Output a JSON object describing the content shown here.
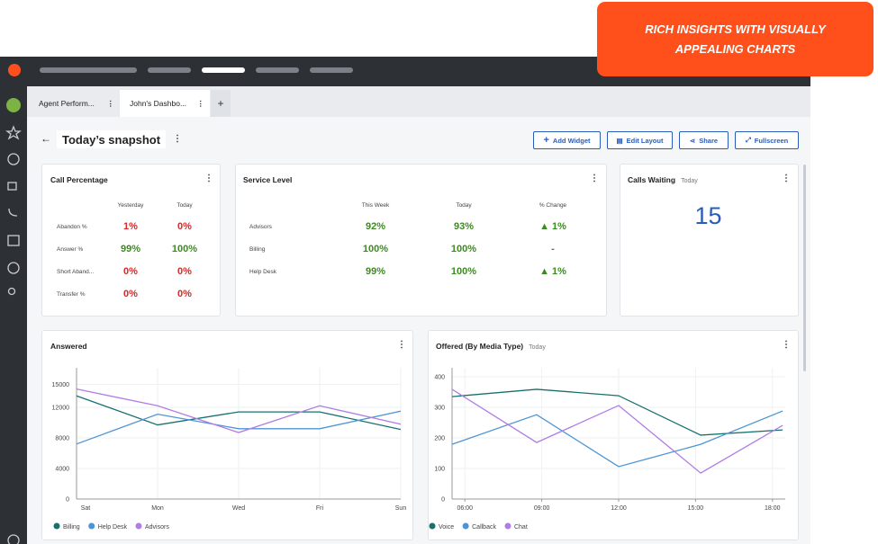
{
  "banner": "RICH INSIGHTS WITH VISUALLY APPEALING CHARTS",
  "tabs": [
    "Agent Perform...",
    "John's Dashbo..."
  ],
  "page_title": "Today’s snapshot",
  "actions": [
    "Add Widget",
    "Edit Layout",
    "Share",
    "Fullscreen"
  ],
  "call_percentage": {
    "title": "Call Percentage",
    "columns": [
      "Yesterday",
      "Today"
    ],
    "rows": [
      {
        "label": "Abandon %",
        "values": [
          "1%",
          "0%"
        ],
        "color": "#d42a2a"
      },
      {
        "label": "Answer %",
        "values": [
          "99%",
          "100%"
        ],
        "color": "#3e8a22"
      },
      {
        "label": "Short Aband...",
        "values": [
          "0%",
          "0%"
        ],
        "color": "#d42a2a"
      },
      {
        "label": "Transfer %",
        "values": [
          "0%",
          "0%"
        ],
        "color": "#d42a2a"
      }
    ]
  },
  "service_level": {
    "title": "Service Level",
    "columns": [
      "This Week",
      "Today",
      "% Change"
    ],
    "color": "#3e8a22",
    "rows": [
      {
        "label": "Advisors",
        "values": [
          "92%",
          "93%",
          "▲ 1%"
        ]
      },
      {
        "label": "Billing",
        "values": [
          "100%",
          "100%",
          "-"
        ]
      },
      {
        "label": "Help Desk",
        "values": [
          "99%",
          "100%",
          "▲ 1%"
        ]
      }
    ]
  },
  "calls_waiting": {
    "title": "Calls Waiting",
    "subtitle": "Today",
    "value": 15
  },
  "chart_data": [
    {
      "type": "line",
      "title": "Answered",
      "categories": [
        "Sat",
        "Mon",
        "Wed",
        "Fri",
        "Sun"
      ],
      "ylim": [
        0,
        16000
      ],
      "yticks": [
        0,
        4000,
        8000,
        12000,
        15000
      ],
      "grid": true,
      "series": [
        {
          "name": "Billing",
          "color": "#17706e",
          "values": [
            13500,
            9700,
            11400,
            11400,
            9100
          ]
        },
        {
          "name": "Help Desk",
          "color": "#4d94d4",
          "values": [
            7200,
            11100,
            9200,
            9200,
            11500
          ]
        },
        {
          "name": "Advisors",
          "color": "#b07ce6",
          "values": [
            14400,
            12200,
            8700,
            12200,
            9800
          ]
        }
      ]
    },
    {
      "type": "line",
      "title": "Offered (By Media Type)",
      "subtitle": "Today",
      "x": [
        5.5,
        8.8,
        12,
        15.2,
        18.4
      ],
      "xlim": [
        5.5,
        18.5
      ],
      "xticks": [
        {
          "value": 6,
          "label": "06:00"
        },
        {
          "value": 9,
          "label": "09:00"
        },
        {
          "value": 12,
          "label": "12:00"
        },
        {
          "value": 15,
          "label": "15:00"
        },
        {
          "value": 18,
          "label": "18:00"
        }
      ],
      "ylim": [
        0,
        400
      ],
      "yticks": [
        0,
        100,
        200,
        300,
        400
      ],
      "grid": true,
      "series": [
        {
          "name": "Voice",
          "color": "#17706e",
          "values": [
            335,
            359,
            338,
            209,
            226
          ]
        },
        {
          "name": "Callback",
          "color": "#4d94d4",
          "values": [
            179,
            276,
            106,
            179,
            288
          ]
        },
        {
          "name": "Chat",
          "color": "#b07ce6",
          "values": [
            359,
            185,
            306,
            85,
            241
          ]
        }
      ]
    }
  ]
}
